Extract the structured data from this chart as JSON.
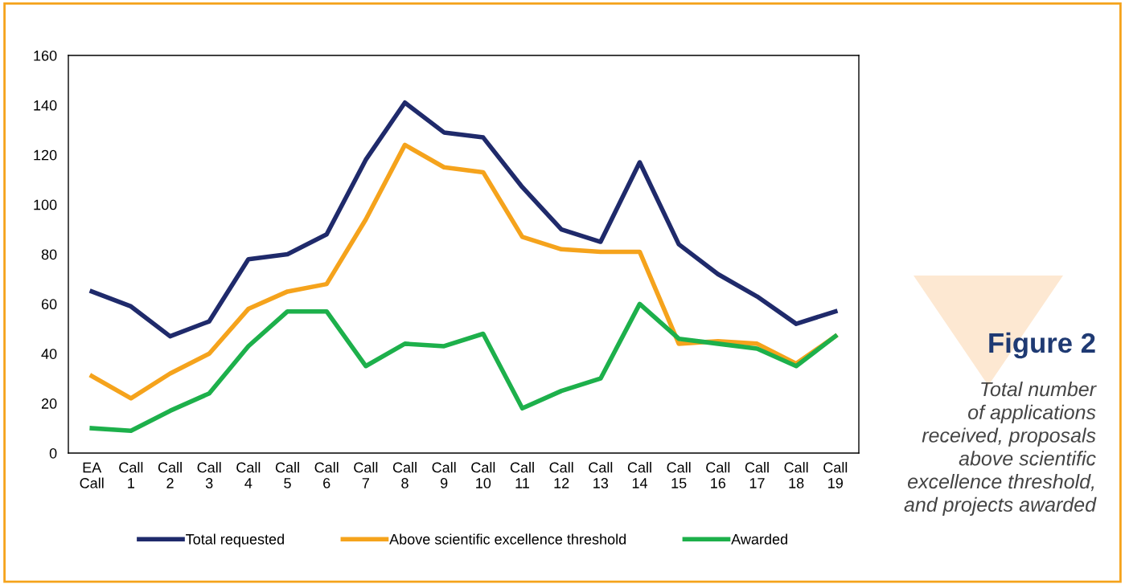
{
  "chart_data": {
    "type": "line",
    "title": "Figure 2",
    "annotations": [
      "Total number\nof applications\nreceived, proposals\nabove scientific\nexcellence threshold,\nand projects awarded"
    ],
    "categories": [
      "EA\nCall",
      "Call\n1",
      "Call\n2",
      "Call\n3",
      "Call\n4",
      "Call\n5",
      "Call\n6",
      "Call\n7",
      "Call\n8",
      "Call\n9",
      "Call\n10",
      "Call\n11",
      "Call\n12",
      "Call\n13",
      "Call\n14",
      "Call\n15",
      "Call\n16",
      "Call\n17",
      "Call\n18",
      "Call\n19"
    ],
    "series": [
      {
        "name": "Total requested",
        "color": "#1f2a6b",
        "values": [
          65,
          59,
          47,
          53,
          78,
          80,
          88,
          118,
          141,
          129,
          127,
          107,
          90,
          85,
          117,
          84,
          72,
          63,
          52,
          57
        ]
      },
      {
        "name": "Above scientific excellence threshold",
        "color": "#f5a31c",
        "values": [
          31,
          22,
          32,
          40,
          58,
          65,
          68,
          94,
          124,
          115,
          113,
          87,
          82,
          81,
          81,
          44,
          45,
          44,
          36,
          47
        ]
      },
      {
        "name": "Awarded",
        "color": "#1db04b",
        "values": [
          10,
          9,
          17,
          24,
          43,
          57,
          57,
          35,
          44,
          43,
          48,
          18,
          25,
          30,
          60,
          46,
          44,
          42,
          35,
          47
        ]
      }
    ],
    "ylim": [
      0,
      160
    ],
    "yticks": [
      0,
      20,
      40,
      60,
      80,
      100,
      120,
      140,
      160
    ],
    "grid": false,
    "legend": "bottom",
    "marker": "none",
    "line_style": "solid"
  }
}
